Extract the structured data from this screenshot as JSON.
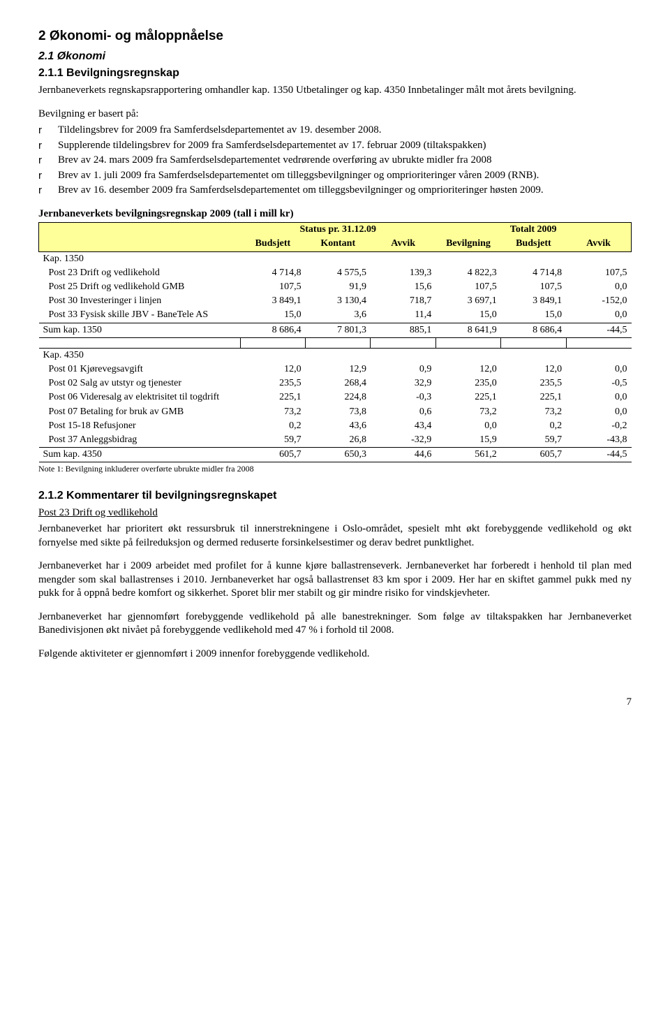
{
  "headings": {
    "h1": "2   Økonomi- og måloppnåelse",
    "h2_1": "2.1   Økonomi",
    "h3_1": "2.1.1   Bevilgningsregnskap",
    "h3_2": "2.1.2   Kommentarer til bevilgningsregnskapet"
  },
  "intro": "Jernbaneverkets regnskapsrapportering omhandler kap. 1350 Utbetalinger og kap. 4350 Innbetalinger målt mot årets bevilgning.",
  "basis_intro": "Bevilgning er basert på:",
  "bullets": {
    "marker": "r",
    "b1": "Tildelingsbrev for 2009 fra Samferdselsdepartementet av 19. desember 2008.",
    "b2": "Supplerende tildelingsbrev for 2009 fra Samferdselsdepartementet av 17. februar 2009 (tiltakspakken)",
    "b3": "Brev av 24. mars 2009 fra Samferdselsdepartementet vedrørende overføring av ubrukte midler fra 2008",
    "b4": "Brev av 1. juli 2009 fra Samferdselsdepartementet om tilleggsbevilgninger og omprioriteringer våren 2009 (RNB).",
    "b5": "Brev av 16. desember 2009 fra Samferdselsdepartementet om tilleggsbevilgninger og omprioriteringer høsten 2009."
  },
  "table": {
    "title": "Jernbaneverkets bevilgningsregnskap 2009 (tall i mill kr)",
    "header_bg": "#ffff99",
    "group1": "Status pr. 31.12.09",
    "group2": "Totalt 2009",
    "cols": {
      "c1": "Budsjett",
      "c2": "Kontant",
      "c3": "Avvik",
      "c4": "Bevilgning",
      "c5": "Budsjett",
      "c6": "Avvik"
    },
    "kap1350_label": "Kap. 1350",
    "kap1350_rows": [
      {
        "label": "Post 23 Drift og vedlikehold",
        "v": [
          "4 714,8",
          "4 575,5",
          "139,3",
          "4 822,3",
          "4 714,8",
          "107,5"
        ]
      },
      {
        "label": "Post 25 Drift og vedlikehold GMB",
        "v": [
          "107,5",
          "91,9",
          "15,6",
          "107,5",
          "107,5",
          "0,0"
        ]
      },
      {
        "label": "Post 30 Investeringer i linjen",
        "v": [
          "3 849,1",
          "3 130,4",
          "718,7",
          "3 697,1",
          "3 849,1",
          "-152,0"
        ]
      },
      {
        "label": "Post 33 Fysisk skille JBV - BaneTele AS",
        "v": [
          "15,0",
          "3,6",
          "11,4",
          "15,0",
          "15,0",
          "0,0"
        ]
      }
    ],
    "kap1350_sum": {
      "label": "Sum kap. 1350",
      "v": [
        "8 686,4",
        "7 801,3",
        "885,1",
        "8 641,9",
        "8 686,4",
        "-44,5"
      ]
    },
    "kap4350_label": "Kap. 4350",
    "kap4350_rows": [
      {
        "label": "Post 01 Kjørevegsavgift",
        "v": [
          "12,0",
          "12,9",
          "0,9",
          "12,0",
          "12,0",
          "0,0"
        ]
      },
      {
        "label": "Post 02 Salg av utstyr og tjenester",
        "v": [
          "235,5",
          "268,4",
          "32,9",
          "235,0",
          "235,5",
          "-0,5"
        ]
      },
      {
        "label": "Post 06 Videresalg av elektrisitet til togdrift",
        "v": [
          "225,1",
          "224,8",
          "-0,3",
          "225,1",
          "225,1",
          "0,0"
        ]
      },
      {
        "label": "Post 07 Betaling for bruk av GMB",
        "v": [
          "73,2",
          "73,8",
          "0,6",
          "73,2",
          "73,2",
          "0,0"
        ]
      },
      {
        "label": "Post 15-18 Refusjoner",
        "v": [
          "0,2",
          "43,6",
          "43,4",
          "0,0",
          "0,2",
          "-0,2"
        ]
      },
      {
        "label": "Post 37 Anleggsbidrag",
        "v": [
          "59,7",
          "26,8",
          "-32,9",
          "15,9",
          "59,7",
          "-43,8"
        ]
      }
    ],
    "kap4350_sum": {
      "label": "Sum kap. 4350",
      "v": [
        "605,7",
        "650,3",
        "44,6",
        "561,2",
        "605,7",
        "-44,5"
      ]
    },
    "note": "Note 1: Bevilgning inkluderer overførte ubrukte midler fra 2008"
  },
  "comments": {
    "post23_title": "Post 23 Drift og vedlikehold",
    "p1": "Jernbaneverket har prioritert økt ressursbruk til innerstrekningene i Oslo-området, spesielt mht økt forebyggende vedlikehold og økt fornyelse med sikte på feilreduksjon og dermed reduserte forsinkelsestimer og derav bedret punktlighet.",
    "p2": "Jernbaneverket har i 2009 arbeidet med profilet for å kunne kjøre ballastrenseverk. Jernbaneverket har forberedt i henhold til plan med mengder som skal ballastrenses i 2010. Jernbaneverket har også ballastrenset 83 km spor i 2009. Her har en skiftet gammel pukk med ny pukk for å oppnå bedre komfort og sikkerhet. Sporet blir mer stabilt og gir mindre risiko for vindskjevheter.",
    "p3": "Jernbaneverket har gjennomført forebyggende vedlikehold på alle banestrekninger. Som følge av tiltakspakken har Jernbaneverket Banedivisjonen økt nivået på forebyggende vedlikehold med 47 % i forhold til 2008.",
    "p4": "Følgende aktiviteter er gjennomført i 2009 innenfor forebyggende vedlikehold."
  },
  "page_number": "7"
}
